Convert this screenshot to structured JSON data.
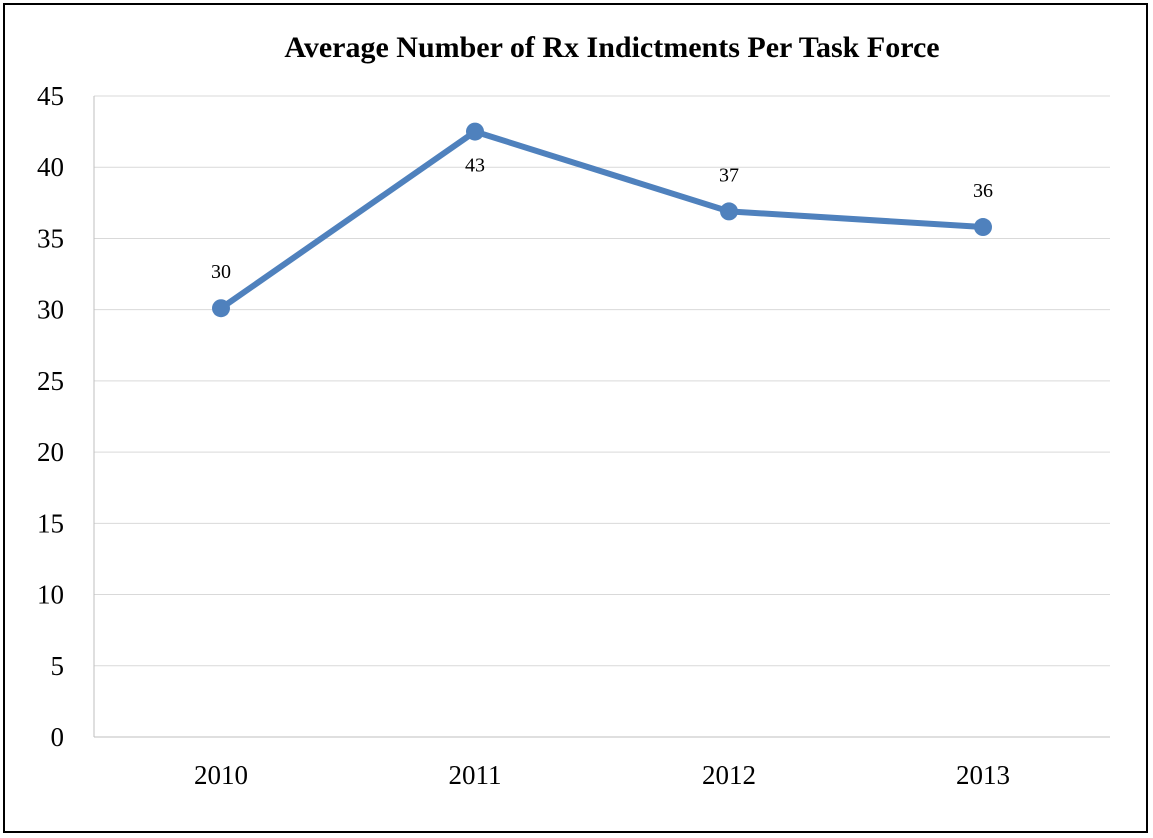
{
  "chart_data": {
    "type": "line",
    "title": "Average Number of Rx Indictments Per Task Force",
    "xlabel": "",
    "ylabel": "",
    "categories": [
      "2010",
      "2011",
      "2012",
      "2013"
    ],
    "series": [
      {
        "values": [
          30.1,
          42.5,
          36.9,
          35.8
        ],
        "data_labels": [
          "30",
          "43",
          "37",
          "36"
        ],
        "color": "#4F81BD"
      }
    ],
    "ylim": [
      0,
      45
    ],
    "y_ticks": [
      0,
      5,
      10,
      15,
      20,
      25,
      30,
      35,
      40,
      45
    ],
    "grid": true,
    "legend": "none"
  }
}
